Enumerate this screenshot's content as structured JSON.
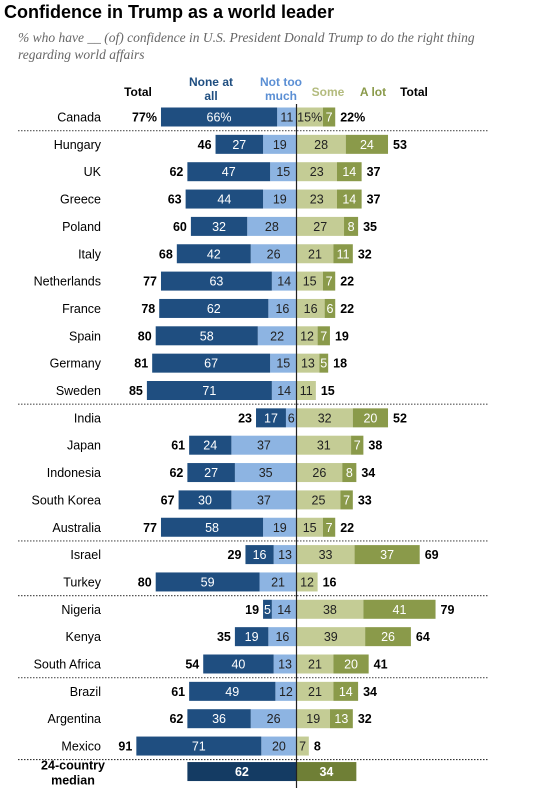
{
  "title": "Confidence in Trump as a world leader",
  "subtitle": "% who have __ (of) confidence in U.S. President Donald Trump to do the right thing regarding world affairs",
  "headers": {
    "total_left": "Total",
    "none_at_all": "None at all",
    "not_too_much": "Not too much",
    "some": "Some",
    "a_lot": "A lot",
    "total_right": "Total"
  },
  "colors": {
    "none_at_all": "#1f4e80",
    "not_too_much": "#8db4e2",
    "some": "#c4cc95",
    "a_lot": "#8a9a4a",
    "median_none": "#143b63",
    "median_alot": "#6f7f36",
    "divider": "#555555"
  },
  "chart_data": {
    "type": "bar",
    "orientation": "horizontal-diverging",
    "categories": [
      "Canada",
      "Hungary",
      "UK",
      "Greece",
      "Poland",
      "Italy",
      "Netherlands",
      "France",
      "Spain",
      "Germany",
      "Sweden",
      "India",
      "Japan",
      "Indonesia",
      "South Korea",
      "Australia",
      "Israel",
      "Turkey",
      "Nigeria",
      "Kenya",
      "South Africa",
      "Brazil",
      "Argentina",
      "Mexico"
    ],
    "series": [
      {
        "name": "None at all",
        "values": [
          66,
          27,
          47,
          44,
          32,
          42,
          63,
          62,
          58,
          67,
          71,
          17,
          24,
          27,
          30,
          58,
          16,
          59,
          5,
          19,
          40,
          49,
          36,
          71
        ]
      },
      {
        "name": "Not too much",
        "values": [
          11,
          19,
          15,
          19,
          28,
          26,
          14,
          16,
          22,
          15,
          14,
          6,
          37,
          35,
          37,
          19,
          13,
          21,
          14,
          16,
          13,
          12,
          26,
          20
        ]
      },
      {
        "name": "Some",
        "values": [
          15,
          28,
          23,
          23,
          27,
          21,
          15,
          16,
          12,
          13,
          11,
          32,
          31,
          26,
          25,
          15,
          33,
          12,
          38,
          39,
          21,
          21,
          19,
          7
        ]
      },
      {
        "name": "A lot",
        "values": [
          7,
          24,
          14,
          14,
          8,
          11,
          7,
          6,
          7,
          5,
          null,
          20,
          7,
          8,
          7,
          7,
          37,
          null,
          41,
          26,
          20,
          14,
          13,
          null
        ]
      }
    ],
    "value_labels": {
      "none_at_all": [
        "66%",
        "27",
        "47",
        "44",
        "32",
        "42",
        "63",
        "62",
        "58",
        "67",
        "71",
        "17",
        "24",
        "27",
        "30",
        "58",
        "16",
        "59",
        "5",
        "19",
        "40",
        "49",
        "36",
        "71"
      ],
      "not_too_much": [
        "11",
        "19",
        "15",
        "19",
        "28",
        "26",
        "14",
        "16",
        "22",
        "15",
        "14",
        "6",
        "37",
        "35",
        "37",
        "19",
        "13",
        "21",
        "14",
        "16",
        "13",
        "12",
        "26",
        "20"
      ],
      "some": [
        "15%",
        "28",
        "23",
        "23",
        "27",
        "21",
        "15",
        "16",
        "12",
        "13",
        "11",
        "32",
        "31",
        "26",
        "25",
        "15",
        "33",
        "12",
        "38",
        "39",
        "21",
        "21",
        "19",
        "7"
      ],
      "a_lot": [
        "7",
        "24",
        "14",
        "14",
        "8",
        "11",
        "7",
        "6",
        "7",
        "5",
        "",
        "20",
        "7",
        "8",
        "7",
        "7",
        "37",
        "",
        "41",
        "26",
        "20",
        "14",
        "13",
        ""
      ]
    },
    "totals_no_confidence": [
      "77%",
      "46",
      "62",
      "63",
      "60",
      "68",
      "77",
      "78",
      "80",
      "81",
      "85",
      "23",
      "61",
      "62",
      "67",
      "77",
      "29",
      "80",
      "19",
      "35",
      "54",
      "61",
      "62",
      "91"
    ],
    "totals_confidence": [
      "22%",
      "53",
      "37",
      "37",
      "35",
      "32",
      "22",
      "22",
      "19",
      "18",
      "15",
      "52",
      "38",
      "34",
      "33",
      "22",
      "69",
      "16",
      "79",
      "64",
      "41",
      "34",
      "32",
      "8"
    ],
    "group_breaks_after": [
      "Canada",
      "Sweden",
      "Australia",
      "Turkey",
      "South Africa"
    ],
    "median": {
      "label": "24-country median",
      "none_side": 62,
      "confidence_side": 34
    }
  }
}
